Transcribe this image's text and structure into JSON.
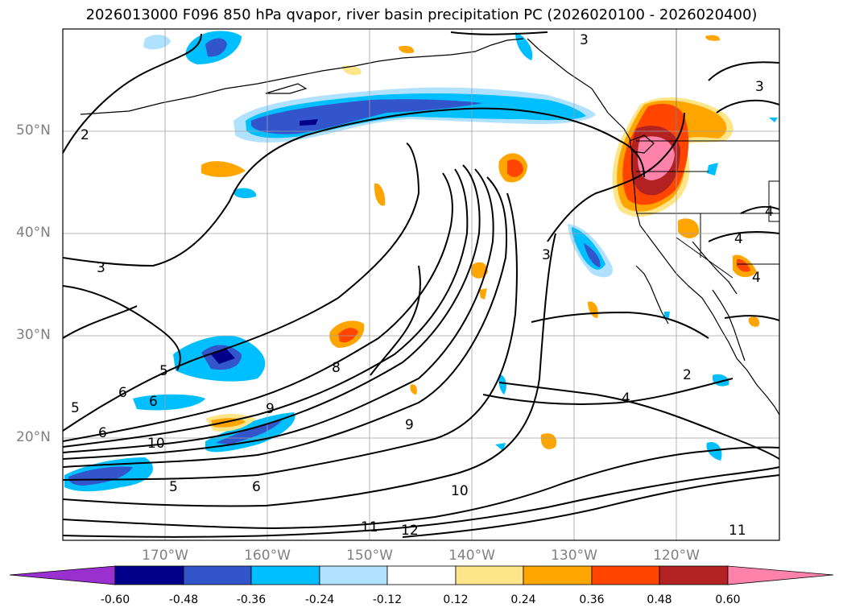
{
  "title": "2026013000 F096 850 hPa qvapor, river basin precipitation PC (2026020100 - 2026020400)",
  "lat_labels": [
    "50°N",
    "40°N",
    "30°N",
    "20°N"
  ],
  "lon_labels": [
    "170°W",
    "160°W",
    "150°W",
    "140°W",
    "130°W",
    "120°W"
  ],
  "colorbar": {
    "ticks": [
      "-0.60",
      "-0.48",
      "-0.36",
      "-0.24",
      "-0.12",
      "0.12",
      "0.24",
      "0.36",
      "0.48",
      "0.60"
    ],
    "colors": [
      "#9b30d0",
      "#00008b",
      "#3355cc",
      "#00bfff",
      "#b0e2ff",
      "#ffffff",
      "#ffe58a",
      "#ffa500",
      "#ff4500",
      "#b22222",
      "#ff82ab"
    ]
  },
  "contour_labels": [
    "2",
    "3",
    "3",
    "3",
    "3",
    "4",
    "4",
    "4",
    "4",
    "5",
    "5",
    "5",
    "6",
    "6",
    "6",
    "6",
    "8",
    "9",
    "9",
    "10",
    "10",
    "11",
    "11",
    "12",
    "2"
  ]
}
